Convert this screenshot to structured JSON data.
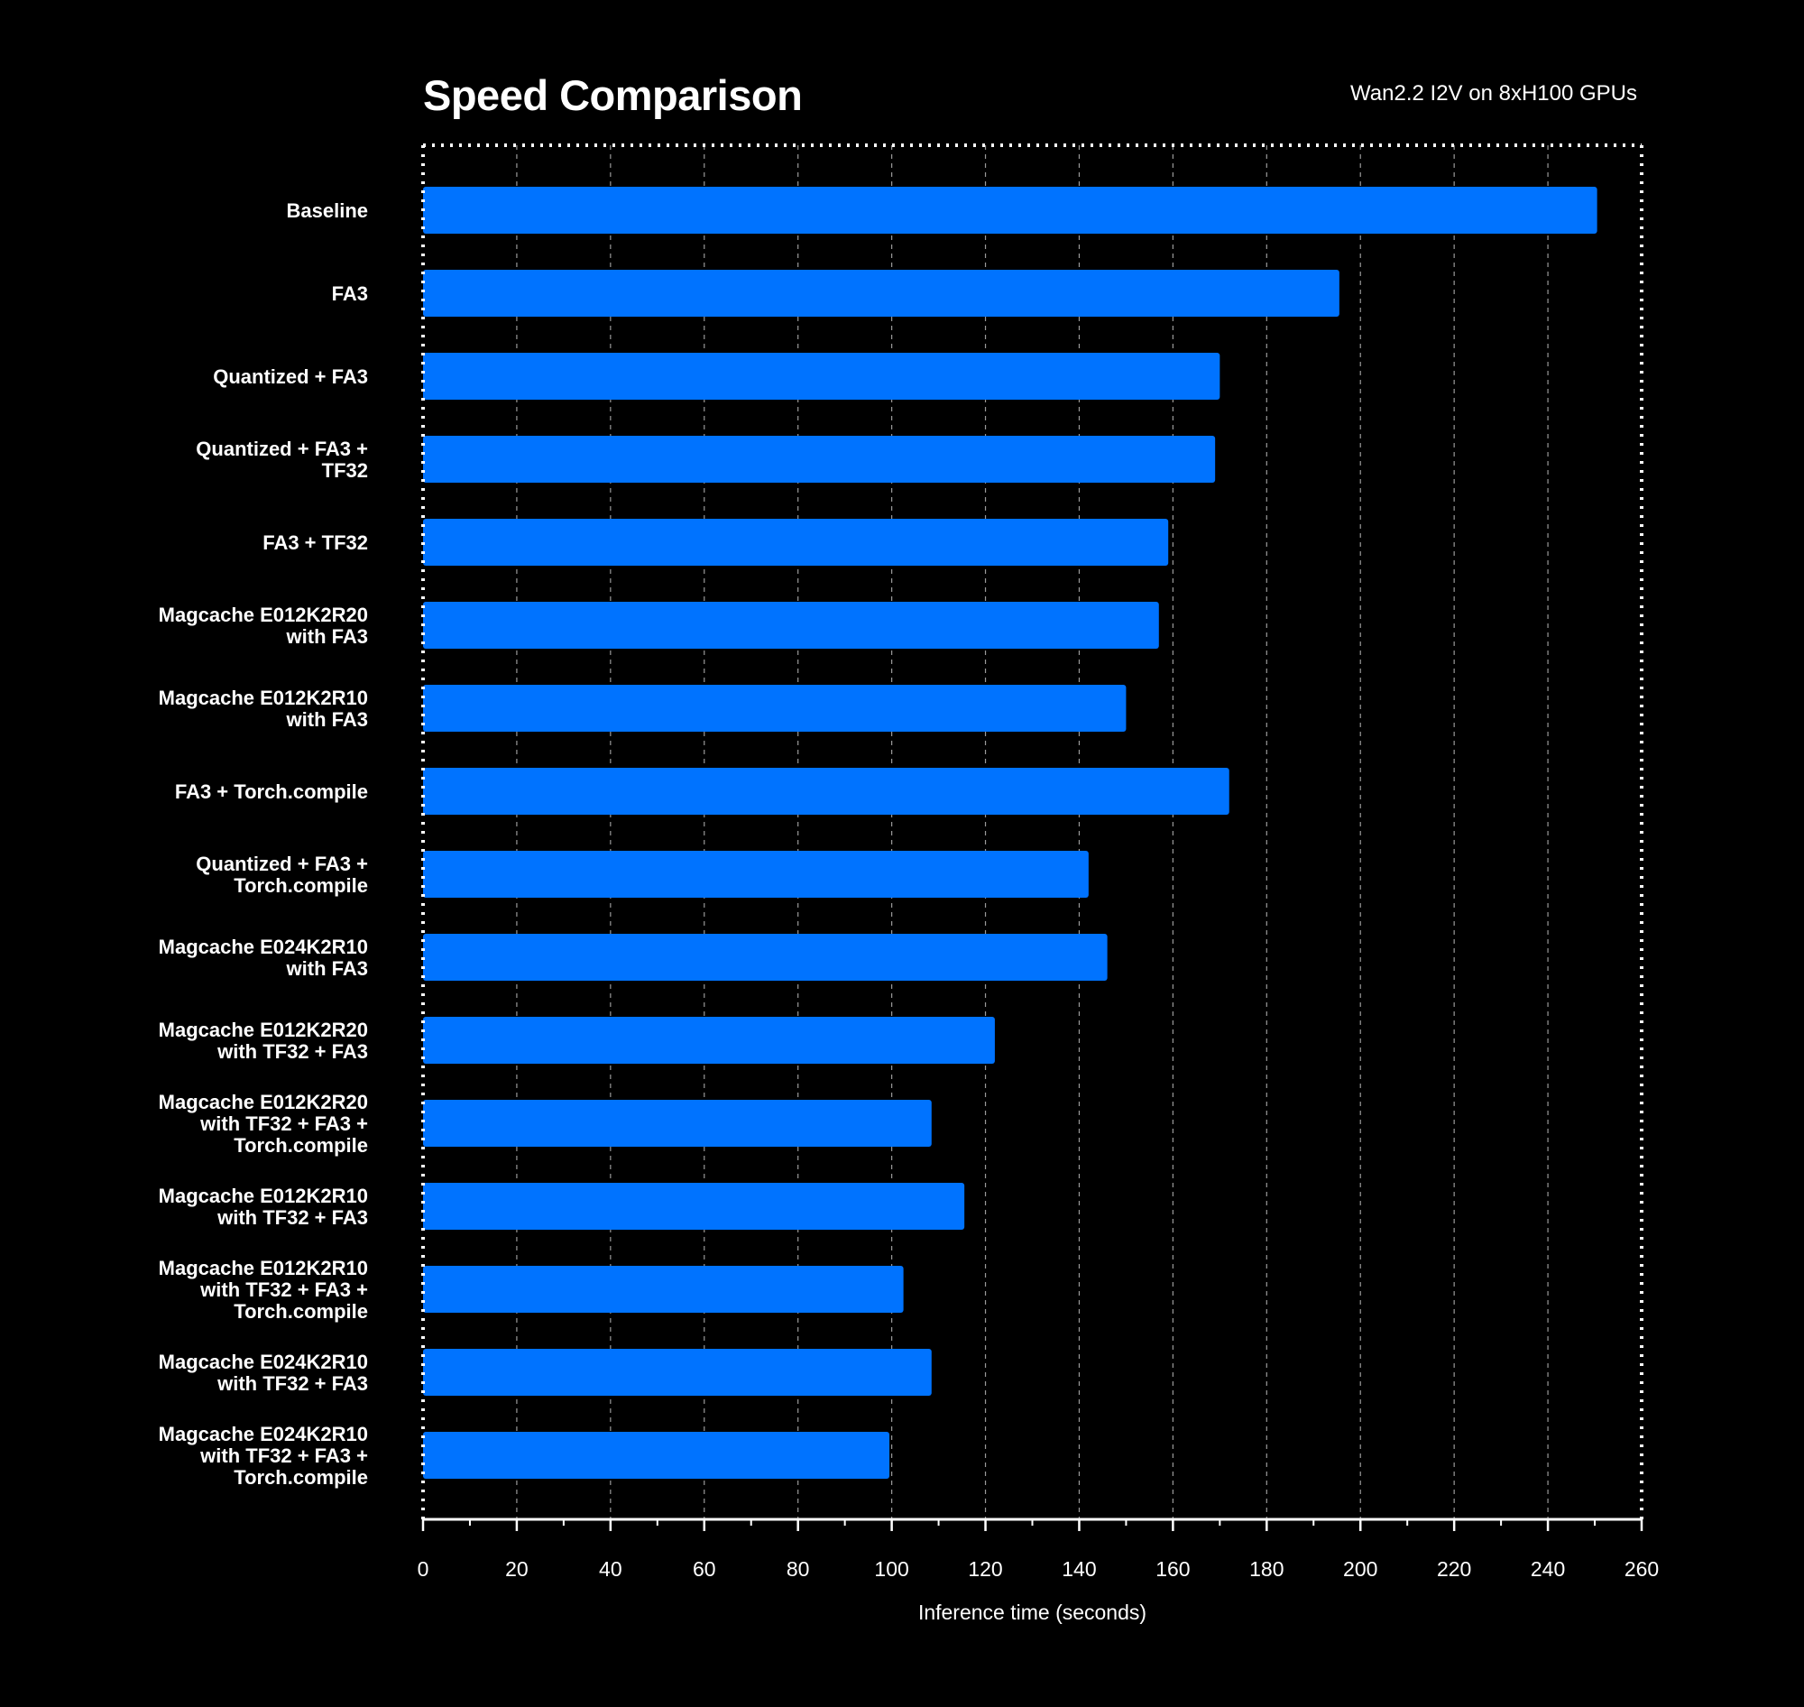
{
  "chart_data": {
    "type": "bar",
    "orientation": "horizontal",
    "title": "Speed Comparison",
    "subtitle": "Wan2.2 I2V on 8xH100 GPUs",
    "xlabel": "Inference time (seconds)",
    "ylabel": "",
    "xlim": [
      0,
      260
    ],
    "xticks": [
      "0",
      "20",
      "40",
      "60",
      "80",
      "100",
      "120",
      "140",
      "160",
      "180",
      "200",
      "220",
      "240",
      "260"
    ],
    "grid": "vertical dashed",
    "bar_color": "#0073ff",
    "background_color": "#000000",
    "text_color": "#ffffff",
    "categories": [
      [
        "Baseline"
      ],
      [
        "FA3"
      ],
      [
        "Quantized + FA3"
      ],
      [
        "Quantized + FA3 +",
        "TF32"
      ],
      [
        "FA3 + TF32"
      ],
      [
        "Magcache E012K2R20",
        "with FA3"
      ],
      [
        "Magcache E012K2R10",
        "with FA3"
      ],
      [
        "FA3 + Torch.compile"
      ],
      [
        "Quantized + FA3 +",
        "Torch.compile"
      ],
      [
        "Magcache E024K2R10",
        "with FA3"
      ],
      [
        "Magcache E012K2R20",
        "with TF32 + FA3"
      ],
      [
        "Magcache E012K2R20",
        "with TF32 + FA3 +",
        "Torch.compile"
      ],
      [
        "Magcache E012K2R10",
        "with TF32 + FA3"
      ],
      [
        "Magcache E012K2R10",
        "with TF32 + FA3 +",
        "Torch.compile"
      ],
      [
        "Magcache E024K2R10",
        "with TF32 + FA3"
      ],
      [
        "Magcache E024K2R10",
        "with TF32 + FA3 +",
        "Torch.compile"
      ]
    ],
    "values": [
      250.5,
      195.5,
      170,
      169,
      159,
      157,
      150,
      172,
      142,
      146,
      122,
      108.5,
      115.5,
      102.5,
      108.5,
      99.5
    ]
  }
}
